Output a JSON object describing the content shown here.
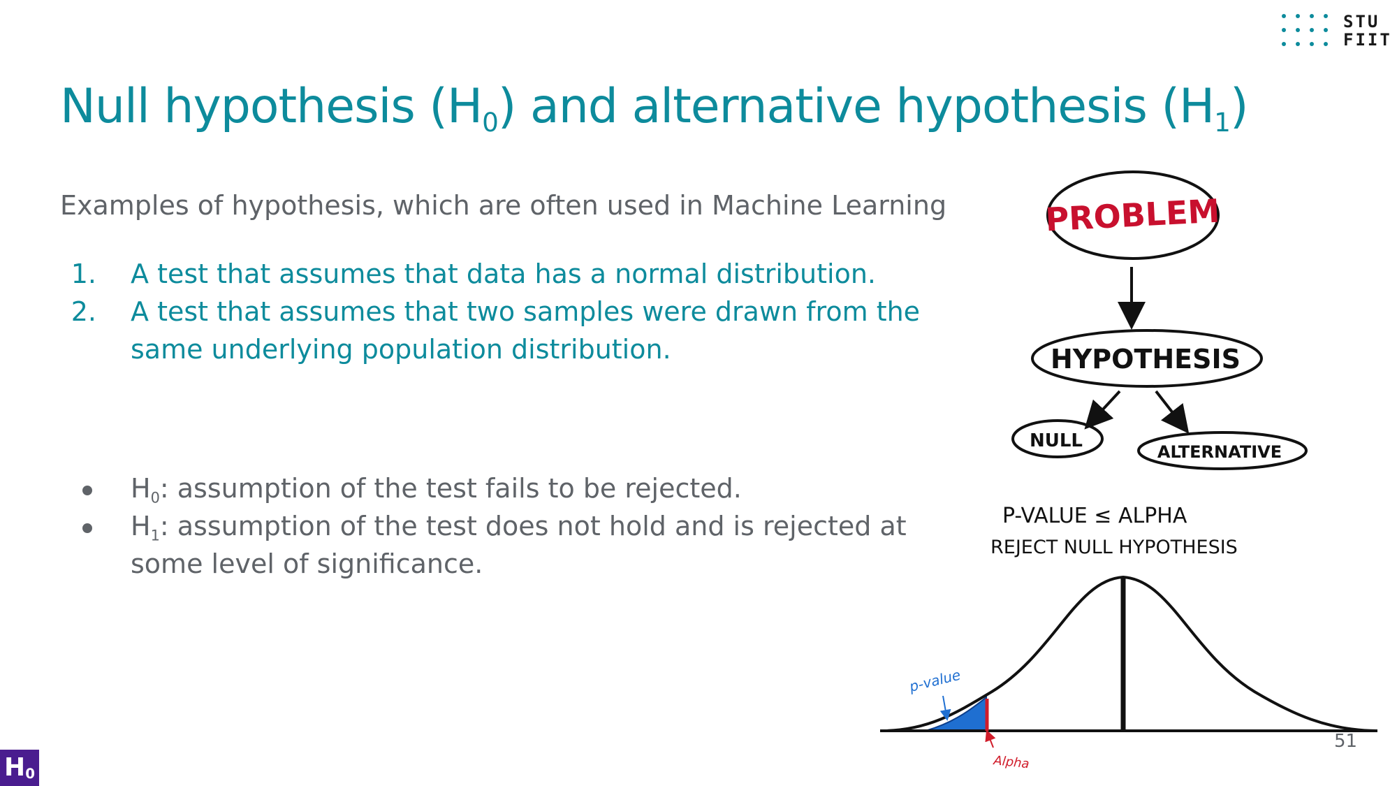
{
  "logo": {
    "line1": "STU",
    "line2": "FIIT"
  },
  "title": {
    "part1": "Null hypothesis (H",
    "sub1": "0",
    "part2": ") and alternative hypothesis (H",
    "sub2": "1",
    "part3": ")"
  },
  "intro": "Examples of hypothesis, which are often used in Machine Learning",
  "numbered_list": [
    {
      "num": "1.",
      "text": "A test that assumes that data has a normal distribution."
    },
    {
      "num": "2.",
      "text": "A test that assumes that two samples were drawn from the same underlying population distribution."
    }
  ],
  "bullets": [
    {
      "prefix": "H",
      "sub": "0",
      "text": ": assumption of the test fails to be rejected."
    },
    {
      "prefix": "H",
      "sub": "1",
      "text": ": assumption of the test does not hold and is rejected at some level of significance."
    }
  ],
  "illustration": {
    "problem": "PROBLEM",
    "hypothesis": "HYPOTHESIS",
    "null": "NULL",
    "alternative": "ALTERNATIVE",
    "rule_line1": "P-VALUE ≤ ALPHA",
    "rule_line2": "REJECT NULL HYPOTHESIS",
    "pvalue_label": "p-value",
    "alpha_label": "Alpha"
  },
  "page_number": "51",
  "badge": {
    "main": "H",
    "sub": "0"
  },
  "colors": {
    "teal": "#0d8b9c",
    "gray_text": "#5f6368",
    "problem_red": "#c8102e",
    "pvalue_blue": "#1f6fd1",
    "alpha_red": "#d01c2a",
    "badge_purple": "#4a1d8f"
  }
}
